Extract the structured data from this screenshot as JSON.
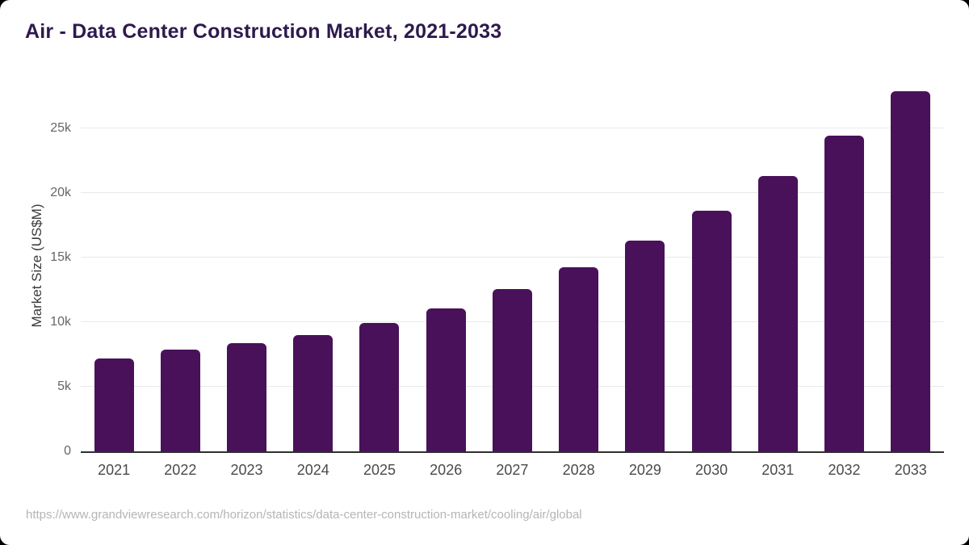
{
  "page": {
    "title": "Air - Data Center Construction Market, 2021-2033",
    "footer_url": "https://www.grandviewresearch.com/horizon/statistics/data-center-construction-market/cooling/air/global"
  },
  "chart_data": {
    "type": "bar",
    "title": "Air - Data Center Construction Market, 2021-2033",
    "xlabel": "",
    "ylabel": "Market Size (US$M)",
    "unit": "US$M",
    "categories": [
      "2021",
      "2022",
      "2023",
      "2024",
      "2025",
      "2026",
      "2027",
      "2028",
      "2029",
      "2030",
      "2031",
      "2032",
      "2033"
    ],
    "values": [
      7200,
      7850,
      8350,
      9000,
      9950,
      11050,
      12550,
      14250,
      16300,
      18650,
      21300,
      24450,
      27900
    ],
    "ylim": [
      0,
      28750
    ],
    "yticks": [
      {
        "value": 0,
        "label": "0"
      },
      {
        "value": 5000,
        "label": "5k"
      },
      {
        "value": 10000,
        "label": "10k"
      },
      {
        "value": 15000,
        "label": "15k"
      },
      {
        "value": 20000,
        "label": "20k"
      },
      {
        "value": 25000,
        "label": "25k"
      }
    ],
    "grid": "horizontal",
    "legend_position": "none",
    "colors": {
      "bar": "#491159",
      "title_text": "#2e1a4d",
      "axis_line": "#2f2f2f",
      "gridline": "#e9e9e9",
      "tick_text": "#666666",
      "x_label_text": "#4a4a4a",
      "footer_text": "#b5b5b5",
      "card_background": "#ffffff",
      "page_background": "#000000"
    }
  }
}
